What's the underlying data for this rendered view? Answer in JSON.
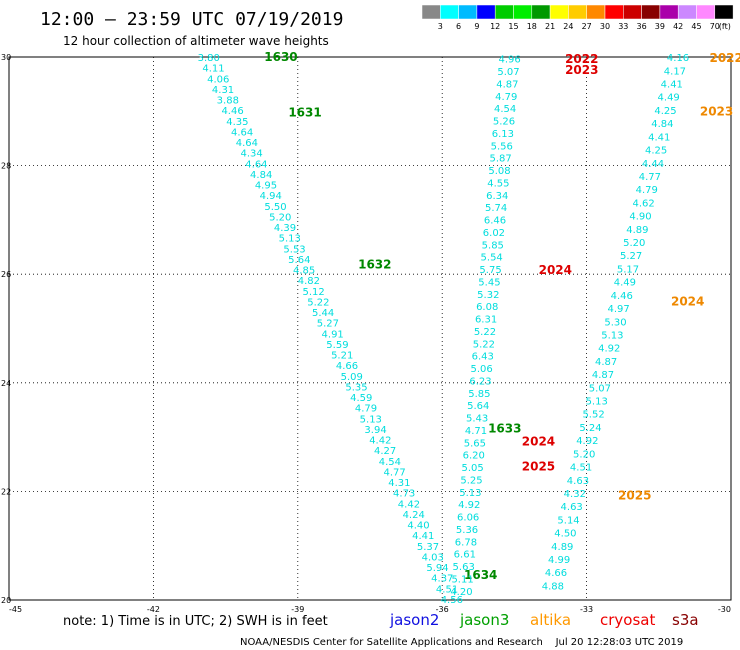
{
  "header": {
    "title": "12:00 — 23:59 UTC 07/19/2019",
    "subtitle": "12 hour collection of altimeter wave heights"
  },
  "colorbar": {
    "colors": [
      "#888888",
      "#00ffff",
      "#00bbff",
      "#0000ff",
      "#00cc00",
      "#00ee00",
      "#009900",
      "#ffff00",
      "#ffcc00",
      "#ff8800",
      "#ff0000",
      "#cc0000",
      "#880000",
      "#aa00aa",
      "#cc88ff",
      "#ff88ff",
      "#000000"
    ],
    "labels": [
      "3",
      "6",
      "9",
      "12",
      "15",
      "18",
      "21",
      "24",
      "27",
      "30",
      "33",
      "36",
      "39",
      "42",
      "45",
      "70"
    ],
    "unit": "(ft)"
  },
  "note": "note: 1) Time is in UTC; 2) SWH is in feet",
  "legend": [
    {
      "name": "jason2",
      "color": "#1010e0"
    },
    {
      "name": "jason3",
      "color": "#00a000"
    },
    {
      "name": "altika",
      "color": "#ff9900"
    },
    {
      "name": "cryosat",
      "color": "#ee0000"
    },
    {
      "name": "s3a",
      "color": "#880000"
    }
  ],
  "credit": "NOAA/NESDIS Center for Satellite Applications and Research    Jul 20 12:28:03 UTC 2019",
  "chart_data": {
    "type": "scatter",
    "title": "12:00 — 23:59 UTC 07/19/2019",
    "subtitle": "12 hour collection of altimeter wave heights",
    "xlabel": "",
    "ylabel": "",
    "xlim": [
      -45,
      -30
    ],
    "ylim": [
      20,
      30
    ],
    "x_ticks": [
      "-45",
      "-42",
      "-39",
      "-36",
      "-33",
      "-30"
    ],
    "y_ticks": [
      "20",
      "22",
      "24",
      "26",
      "28",
      "30"
    ],
    "grid": true,
    "value_color": "#00dddd",
    "tracks": [
      {
        "satellite": "jason3",
        "color": "#008800",
        "start": [
          -40.85,
          29.98
        ],
        "end": [
          -35.8,
          20.0
        ],
        "values": [
          "3.80",
          "4.11",
          "4.06",
          "4.31",
          "3.88",
          "4.46",
          "4.35",
          "4.64",
          "4.64",
          "4.34",
          "4.64",
          "4.84",
          "4.95",
          "4.94",
          "5.50",
          "5.20",
          "4.39",
          "5.13",
          "5.53",
          "5.64",
          "4.85",
          "4.82",
          "5.12",
          "5.22",
          "5.44",
          "5.27",
          "4.91",
          "5.59",
          "5.21",
          "4.66",
          "5.09",
          "5.35",
          "4.59",
          "4.79",
          "5.13",
          "3.94",
          "4.42",
          "4.27",
          "4.54",
          "4.77",
          "4.31",
          "4.73",
          "4.42",
          "4.24",
          "4.40",
          "4.41",
          "5.37",
          "4.03",
          "5.94",
          "4.37",
          "4.51",
          "4.56"
        ],
        "time_labels": [
          {
            "text": "1630",
            "at": [
              -39.35,
              30.0
            ]
          },
          {
            "text": "1631",
            "at": [
              -38.85,
              28.98
            ]
          },
          {
            "text": "1632",
            "at": [
              -37.4,
              26.18
            ]
          },
          {
            "text": "1633",
            "at": [
              -34.7,
              23.16
            ]
          },
          {
            "text": "1634",
            "at": [
              -35.2,
              20.46
            ]
          }
        ]
      },
      {
        "satellite": "cryosat",
        "color": "#dd0000",
        "start": [
          -34.6,
          29.95
        ],
        "end": [
          -35.6,
          20.15
        ],
        "values": [
          "4.96",
          "5.07",
          "4.87",
          "4.79",
          "4.54",
          "5.26",
          "6.13",
          "5.56",
          "5.87",
          "5.08",
          "4.55",
          "6.34",
          "5.74",
          "6.46",
          "6.02",
          "5.85",
          "5.54",
          "5.75",
          "5.45",
          "5.32",
          "6.08",
          "6.31",
          "5.22",
          "5.22",
          "6.43",
          "5.06",
          "6.23",
          "5.85",
          "5.64",
          "5.43",
          "4.71",
          "5.65",
          "6.20",
          "5.05",
          "5.25",
          "5.13",
          "4.92",
          "6.06",
          "5.36",
          "6.78",
          "6.61",
          "5.63",
          "5.11",
          "4.20"
        ],
        "time_labels": [
          {
            "text": "2022",
            "at": [
              -33.1,
              29.96
            ]
          },
          {
            "text": "2023",
            "at": [
              -33.1,
              29.76
            ]
          },
          {
            "text": "2024",
            "at": [
              -33.65,
              26.08
            ]
          },
          {
            "text": "2024",
            "at": [
              -34.0,
              22.92
            ]
          },
          {
            "text": "2025",
            "at": [
              -34.0,
              22.46
            ]
          }
        ]
      },
      {
        "satellite": "altika",
        "color": "#ee8800",
        "start": [
          -31.1,
          29.98
        ],
        "end": [
          -33.7,
          20.25
        ],
        "values": [
          "4.16",
          "4.17",
          "4.41",
          "4.49",
          "4.25",
          "4.84",
          "4.41",
          "4.25",
          "4.44",
          "4.77",
          "4.79",
          "4.62",
          "4.90",
          "4.89",
          "5.20",
          "5.27",
          "5.17",
          "4.49",
          "4.46",
          "4.97",
          "5.30",
          "5.13",
          "4.92",
          "4.87",
          "4.87",
          "5.07",
          "5.13",
          "5.52",
          "5.24",
          "4.92",
          "5.20",
          "4.51",
          "4.63",
          "4.32",
          "4.63",
          "5.14",
          "4.50",
          "4.89",
          "4.99",
          "4.66",
          "4.88"
        ],
        "time_labels": [
          {
            "text": "2022",
            "at": [
              -30.1,
              29.98
            ]
          },
          {
            "text": "2023",
            "at": [
              -30.3,
              29.0
            ]
          },
          {
            "text": "2024",
            "at": [
              -30.9,
              25.5
            ]
          },
          {
            "text": "2025",
            "at": [
              -32.0,
              21.92
            ]
          }
        ]
      }
    ]
  }
}
